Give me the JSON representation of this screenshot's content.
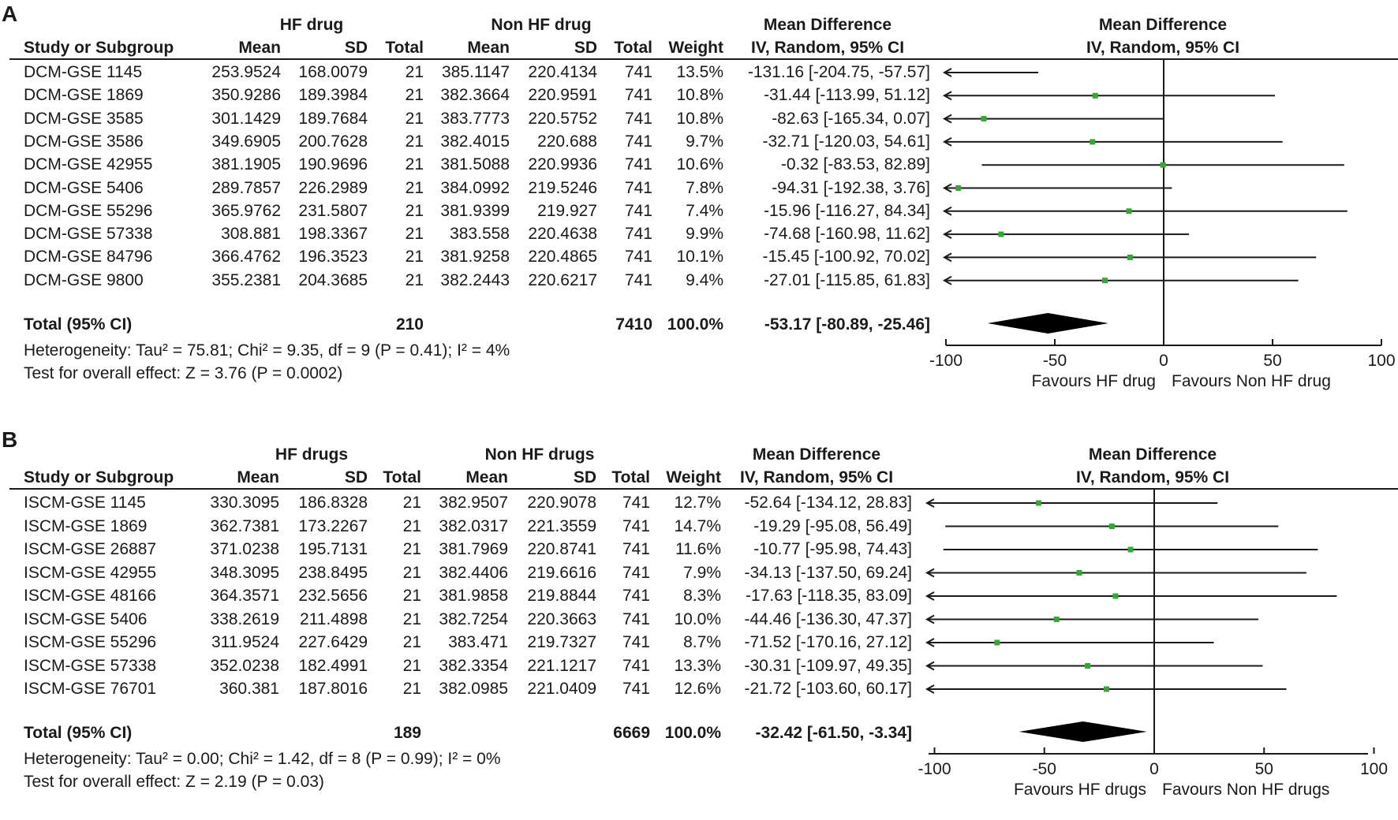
{
  "panels": [
    {
      "label": "A",
      "group1_label": "HF drug",
      "group2_label": "Non HF drug",
      "col_headers": {
        "study": "Study or Subgroup",
        "mean1": "Mean",
        "sd1": "SD",
        "total1": "Total",
        "mean2": "Mean",
        "sd2": "SD",
        "total2": "Total",
        "weight": "Weight",
        "md_title": "Mean Difference",
        "md_method": "IV, Random, 95% CI",
        "plot_title": "Mean Difference",
        "plot_method": "IV, Random, 95% CI"
      },
      "rows": [
        {
          "study": "DCM-GSE 1145",
          "mean1": "253.9524",
          "sd1": "168.0079",
          "total1": "21",
          "mean2": "385.1147",
          "sd2": "220.4134",
          "total2": "741",
          "weight": "13.5%",
          "ci": "-131.16 [-204.75, -57.57]"
        },
        {
          "study": "DCM-GSE 1869",
          "mean1": "350.9286",
          "sd1": "189.3984",
          "total1": "21",
          "mean2": "382.3664",
          "sd2": "220.9591",
          "total2": "741",
          "weight": "10.8%",
          "ci": "-31.44 [-113.99, 51.12]"
        },
        {
          "study": "DCM-GSE 3585",
          "mean1": "301.1429",
          "sd1": "189.7684",
          "total1": "21",
          "mean2": "383.7773",
          "sd2": "220.5752",
          "total2": "741",
          "weight": "10.8%",
          "ci": "-82.63 [-165.34, 0.07]"
        },
        {
          "study": "DCM-GSE 3586",
          "mean1": "349.6905",
          "sd1": "200.7628",
          "total1": "21",
          "mean2": "382.4015",
          "sd2": "220.688",
          "total2": "741",
          "weight": "9.7%",
          "ci": "-32.71 [-120.03, 54.61]"
        },
        {
          "study": "DCM-GSE 42955",
          "mean1": "381.1905",
          "sd1": "190.9696",
          "total1": "21",
          "mean2": "381.5088",
          "sd2": "220.9936",
          "total2": "741",
          "weight": "10.6%",
          "ci": "-0.32 [-83.53, 82.89]"
        },
        {
          "study": "DCM-GSE 5406",
          "mean1": "289.7857",
          "sd1": "226.2989",
          "total1": "21",
          "mean2": "384.0992",
          "sd2": "219.5246",
          "total2": "741",
          "weight": "7.8%",
          "ci": "-94.31 [-192.38, 3.76]"
        },
        {
          "study": "DCM-GSE 55296",
          "mean1": "365.9762",
          "sd1": "231.5807",
          "total1": "21",
          "mean2": "381.9399",
          "sd2": "219.927",
          "total2": "741",
          "weight": "7.4%",
          "ci": "-15.96 [-116.27, 84.34]"
        },
        {
          "study": "DCM-GSE 57338",
          "mean1": "308.881",
          "sd1": "198.3367",
          "total1": "21",
          "mean2": "383.558",
          "sd2": "220.4638",
          "total2": "741",
          "weight": "9.9%",
          "ci": "-74.68 [-160.98, 11.62]"
        },
        {
          "study": "DCM-GSE 84796",
          "mean1": "366.4762",
          "sd1": "196.3523",
          "total1": "21",
          "mean2": "381.9258",
          "sd2": "220.4865",
          "total2": "741",
          "weight": "10.1%",
          "ci": "-15.45 [-100.92, 70.02]"
        },
        {
          "study": "DCM-GSE 9800",
          "mean1": "355.2381",
          "sd1": "204.3685",
          "total1": "21",
          "mean2": "382.2443",
          "sd2": "220.6217",
          "total2": "741",
          "weight": "9.4%",
          "ci": "-27.01 [-115.85, 61.83]"
        }
      ],
      "total": {
        "label": "Total (95% CI)",
        "total1": "210",
        "total2": "7410",
        "weight": "100.0%",
        "ci": "-53.17 [-80.89, -25.46]"
      },
      "heterogeneity": "Heterogeneity: Tau² = 75.81; Chi² = 9.35, df = 9 (P = 0.41); I² = 4%",
      "overall_effect": "Test for overall effect: Z = 3.76 (P = 0.0002)",
      "axis_ticks": [
        "-100",
        "-50",
        "0",
        "50",
        "100"
      ],
      "favours_left": "Favours HF drug",
      "favours_right": "Favours Non HF drug"
    },
    {
      "label": "B",
      "group1_label": "HF drugs",
      "group2_label": "Non HF drugs",
      "col_headers": {
        "study": "Study or Subgroup",
        "mean1": "Mean",
        "sd1": "SD",
        "total1": "Total",
        "mean2": "Mean",
        "sd2": "SD",
        "total2": "Total",
        "weight": "Weight",
        "md_title": "Mean Difference",
        "md_method": "IV, Random, 95% CI",
        "plot_title": "Mean Difference",
        "plot_method": "IV, Random, 95% CI"
      },
      "rows": [
        {
          "study": "ISCM-GSE 1145",
          "mean1": "330.3095",
          "sd1": "186.8328",
          "total1": "21",
          "mean2": "382.9507",
          "sd2": "220.9078",
          "total2": "741",
          "weight": "12.7%",
          "ci": "-52.64 [-134.12, 28.83]"
        },
        {
          "study": "ISCM-GSE 1869",
          "mean1": "362.7381",
          "sd1": "173.2267",
          "total1": "21",
          "mean2": "382.0317",
          "sd2": "221.3559",
          "total2": "741",
          "weight": "14.7%",
          "ci": "-19.29 [-95.08, 56.49]"
        },
        {
          "study": "ISCM-GSE 26887",
          "mean1": "371.0238",
          "sd1": "195.7131",
          "total1": "21",
          "mean2": "381.7969",
          "sd2": "220.8741",
          "total2": "741",
          "weight": "11.6%",
          "ci": "-10.77 [-95.98, 74.43]"
        },
        {
          "study": "ISCM-GSE 42955",
          "mean1": "348.3095",
          "sd1": "238.8495",
          "total1": "21",
          "mean2": "382.4406",
          "sd2": "219.6616",
          "total2": "741",
          "weight": "7.9%",
          "ci": "-34.13 [-137.50, 69.24]"
        },
        {
          "study": "ISCM-GSE 48166",
          "mean1": "364.3571",
          "sd1": "232.5656",
          "total1": "21",
          "mean2": "381.9858",
          "sd2": "219.8844",
          "total2": "741",
          "weight": "8.3%",
          "ci": "-17.63 [-118.35, 83.09]"
        },
        {
          "study": "ISCM-GSE 5406",
          "mean1": "338.2619",
          "sd1": "211.4898",
          "total1": "21",
          "mean2": "382.7254",
          "sd2": "220.3663",
          "total2": "741",
          "weight": "10.0%",
          "ci": "-44.46 [-136.30, 47.37]"
        },
        {
          "study": "ISCM-GSE 55296",
          "mean1": "311.9524",
          "sd1": "227.6429",
          "total1": "21",
          "mean2": "383.471",
          "sd2": "219.7327",
          "total2": "741",
          "weight": "8.7%",
          "ci": "-71.52 [-170.16, 27.12]"
        },
        {
          "study": "ISCM-GSE 57338",
          "mean1": "352.0238",
          "sd1": "182.4991",
          "total1": "21",
          "mean2": "382.3354",
          "sd2": "221.1217",
          "total2": "741",
          "weight": "13.3%",
          "ci": "-30.31 [-109.97, 49.35]"
        },
        {
          "study": "ISCM-GSE 76701",
          "mean1": "360.381",
          "sd1": "187.8016",
          "total1": "21",
          "mean2": "382.0985",
          "sd2": "221.0409",
          "total2": "741",
          "weight": "12.6%",
          "ci": "-21.72 [-103.60, 60.17]"
        }
      ],
      "total": {
        "label": "Total (95% CI)",
        "total1": "189",
        "total2": "6669",
        "weight": "100.0%",
        "ci": "-32.42 [-61.50, -3.34]"
      },
      "heterogeneity": "Heterogeneity: Tau² = 0.00; Chi² = 1.42, df = 8 (P = 0.99); I² = 0%",
      "overall_effect": "Test for overall effect: Z = 2.19 (P = 0.03)",
      "axis_ticks": [
        "-100",
        "-50",
        "0",
        "50",
        "100"
      ],
      "favours_left": "Favours HF drugs",
      "favours_right": "Favours Non HF drugs"
    }
  ],
  "chart_data": [
    {
      "type": "forest",
      "panel": "A",
      "xlim": [
        -100,
        100
      ],
      "xticks": [
        -100,
        -50,
        0,
        50,
        100
      ],
      "studies": [
        "DCM-GSE 1145",
        "DCM-GSE 1869",
        "DCM-GSE 3585",
        "DCM-GSE 3586",
        "DCM-GSE 42955",
        "DCM-GSE 5406",
        "DCM-GSE 55296",
        "DCM-GSE 57338",
        "DCM-GSE 84796",
        "DCM-GSE 9800"
      ],
      "estimates": [
        -131.16,
        -31.44,
        -82.63,
        -32.71,
        -0.32,
        -94.31,
        -15.96,
        -74.68,
        -15.45,
        -27.01
      ],
      "ci_lower": [
        -204.75,
        -113.99,
        -165.34,
        -120.03,
        -83.53,
        -192.38,
        -116.27,
        -160.98,
        -100.92,
        -115.85
      ],
      "ci_upper": [
        -57.57,
        51.12,
        0.07,
        54.61,
        82.89,
        3.76,
        84.34,
        11.62,
        70.02,
        61.83
      ],
      "pooled": {
        "estimate": -53.17,
        "lower": -80.89,
        "upper": -25.46
      },
      "marker_color": "#33a833"
    },
    {
      "type": "forest",
      "panel": "B",
      "xlim": [
        -100,
        100
      ],
      "xticks": [
        -100,
        -50,
        0,
        50,
        100
      ],
      "studies": [
        "ISCM-GSE 1145",
        "ISCM-GSE 1869",
        "ISCM-GSE 26887",
        "ISCM-GSE 42955",
        "ISCM-GSE 48166",
        "ISCM-GSE 5406",
        "ISCM-GSE 55296",
        "ISCM-GSE 57338",
        "ISCM-GSE 76701"
      ],
      "estimates": [
        -52.64,
        -19.29,
        -10.77,
        -34.13,
        -17.63,
        -44.46,
        -71.52,
        -30.31,
        -21.72
      ],
      "ci_lower": [
        -134.12,
        -95.08,
        -95.98,
        -137.5,
        -118.35,
        -136.3,
        -170.16,
        -109.97,
        -103.6
      ],
      "ci_upper": [
        28.83,
        56.49,
        74.43,
        69.24,
        83.09,
        47.37,
        27.12,
        49.35,
        60.17
      ],
      "pooled": {
        "estimate": -32.42,
        "lower": -61.5,
        "upper": -3.34
      },
      "marker_color": "#33a833"
    }
  ]
}
